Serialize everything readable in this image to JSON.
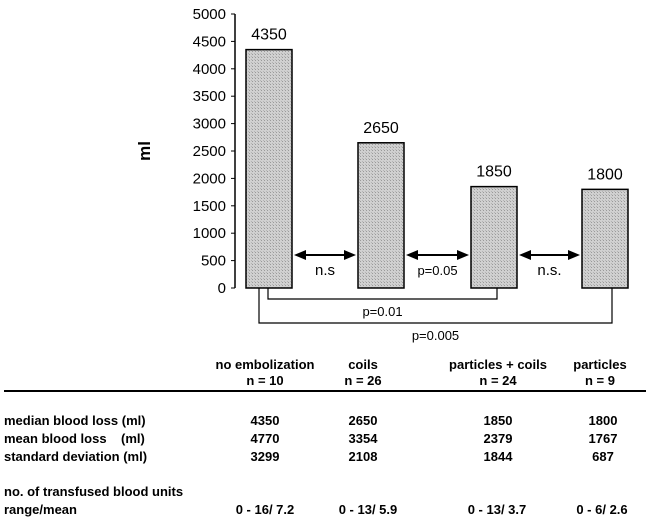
{
  "chart_data": {
    "type": "bar",
    "ylabel": "ml",
    "ylim": [
      0,
      5000
    ],
    "yticks": [
      0,
      500,
      1000,
      1500,
      2000,
      2500,
      3000,
      3500,
      4000,
      4500,
      5000
    ],
    "categories": [
      "no embolization",
      "coils",
      "particles + coils",
      "particles"
    ],
    "values": [
      4350,
      2650,
      1850,
      1800
    ],
    "data_labels": [
      "4350",
      "2650",
      "1850",
      "1800"
    ],
    "adjacent_comparisons": [
      {
        "from": 0,
        "to": 1,
        "label": "n.s"
      },
      {
        "from": 1,
        "to": 2,
        "label": "p=0.05"
      },
      {
        "from": 2,
        "to": 3,
        "label": "n.s."
      }
    ],
    "bracket_comparisons": [
      {
        "from": 0,
        "to": 2,
        "label": "p=0.01"
      },
      {
        "from": 0,
        "to": 3,
        "label": "p=0.005"
      }
    ],
    "grid": false,
    "bar_color": "#d0d0d0"
  },
  "table": {
    "groups": [
      {
        "name": "no embolization",
        "n": "n = 10"
      },
      {
        "name": "coils",
        "n": "n = 26"
      },
      {
        "name": "particles + coils",
        "n": "n = 24"
      },
      {
        "name": "particles",
        "n": "n = 9"
      }
    ],
    "rows": [
      {
        "label": "median blood loss (ml)",
        "values": [
          "4350",
          "2650",
          "1850",
          "1800"
        ]
      },
      {
        "label": "mean blood loss    (ml)",
        "values": [
          "4770",
          "3354",
          "2379",
          "1767"
        ]
      },
      {
        "label": "standard deviation (ml)",
        "values": [
          "3299",
          "2108",
          "1844",
          "687"
        ]
      }
    ],
    "transfusion": {
      "label_line1": "no. of transfused blood units",
      "label_line2": "range/mean",
      "values": [
        "0 - 16/ 7.2",
        "0 - 13/ 5.9",
        "0 - 13/ 3.7",
        "0 - 6/ 2.6"
      ]
    }
  }
}
